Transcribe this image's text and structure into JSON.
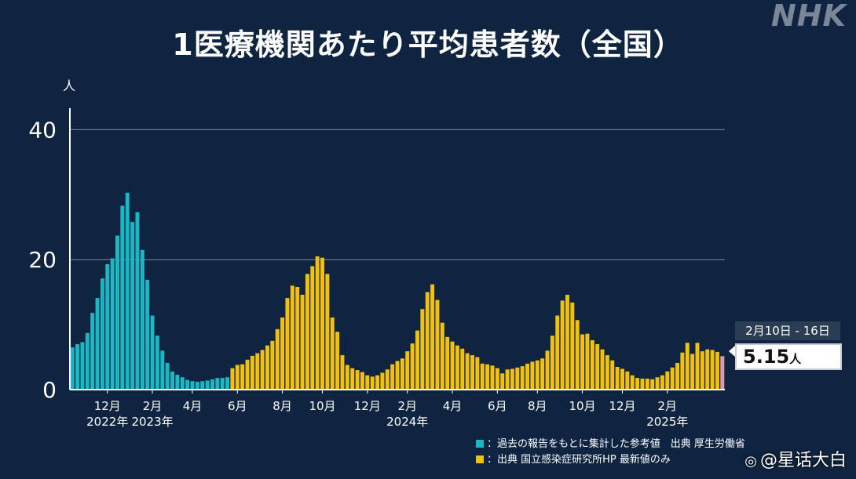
{
  "header": {
    "title": "1医療機関あたり平均患者数（全国）",
    "logo": "NHK"
  },
  "chart_data": {
    "type": "bar",
    "title": "1医療機関あたり平均患者数（全国）",
    "ylabel": "人",
    "xlabel": "",
    "ylim": [
      0,
      42
    ],
    "yticks": [
      0,
      20,
      40
    ],
    "grid": true,
    "colors": {
      "past": "#1ab8c4",
      "current": "#f2c00f",
      "latest": "#e39aa7"
    },
    "series": [
      {
        "name": "過去の報告をもとに集計した参考値　出典 厚生労働省",
        "values": [
          6.5,
          7.0,
          7.3,
          8.7,
          11.8,
          14.1,
          17.1,
          19.3,
          20.2,
          23.7,
          28.3,
          30.3,
          25.8,
          27.3,
          21.5,
          16.9,
          11.4,
          8.3,
          6.0,
          4.1,
          2.8,
          2.3,
          1.9,
          1.5,
          1.3,
          1.2,
          1.3,
          1.4,
          1.6,
          1.8,
          1.8,
          1.9
        ]
      },
      {
        "name": "出典 国立感染症研究所HP 最新値のみ",
        "values": [
          3.3,
          3.8,
          3.9,
          4.6,
          5.2,
          5.6,
          6.1,
          6.8,
          7.5,
          9.3,
          11.1,
          14.1,
          16.0,
          15.8,
          14.6,
          17.8,
          19.0,
          20.5,
          20.3,
          17.8,
          11.1,
          8.9,
          5.3,
          3.8,
          3.3,
          3.0,
          2.7,
          2.2,
          2.0,
          2.2,
          2.6,
          3.1,
          3.9,
          4.4,
          4.8,
          5.9,
          7.1,
          9.1,
          12.4,
          15.0,
          16.2,
          13.8,
          10.3,
          8.1,
          7.4,
          6.8,
          6.3,
          5.6,
          5.3,
          5.0,
          4.0,
          3.9,
          3.7,
          3.3,
          2.5,
          3.1,
          3.2,
          3.4,
          3.6,
          4.0,
          4.3,
          4.5,
          4.8,
          6.0,
          8.3,
          11.4,
          13.7,
          14.6,
          13.4,
          10.7,
          8.5,
          8.6,
          7.6,
          7.0,
          6.2,
          5.3,
          4.5,
          3.5,
          3.2,
          2.8,
          2.2,
          1.8,
          1.7,
          1.7,
          1.6,
          1.9,
          2.2,
          2.8,
          3.4,
          4.1,
          5.7,
          7.2,
          5.5,
          7.2,
          5.9,
          6.2,
          6.1,
          5.8
        ]
      },
      {
        "name": "latest",
        "values": [
          5.15
        ]
      }
    ],
    "x_tick_labels": [
      "12月",
      "2月",
      "4月",
      "6月",
      "8月",
      "10月",
      "12月",
      "2月",
      "4月",
      "6月",
      "8月",
      "10月",
      "12月",
      "2月"
    ],
    "x_tick_index": [
      7,
      16,
      24,
      33,
      42,
      50,
      59,
      67,
      76,
      85,
      93,
      102,
      110,
      119
    ],
    "year_labels": [
      {
        "text": "2022年",
        "index": 7
      },
      {
        "text": "2023年",
        "index": 16
      },
      {
        "text": "2024年",
        "index": 67
      },
      {
        "text": "2025年",
        "index": 119
      }
    ]
  },
  "callout": {
    "date_range": "2月10日 - 16日",
    "value": "5.15",
    "unit": "人"
  },
  "legend": [
    {
      "label": "：過去の報告をもとに集計した参考値　出典 厚生労働省",
      "color": "#1ab8c4"
    },
    {
      "label": "：出典 国立感染症研究所HP 最新値のみ",
      "color": "#f2c00f"
    }
  ],
  "watermark": {
    "text": "@星话大白",
    "icon": "weibo-icon"
  }
}
